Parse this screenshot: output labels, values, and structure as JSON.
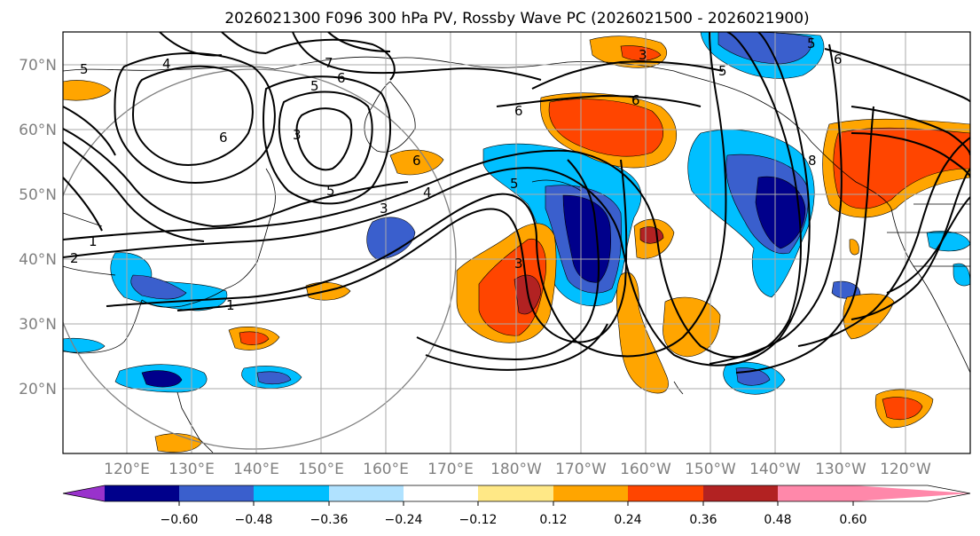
{
  "title": "2026021300 F096 300 hPa PV, Rossby Wave PC (2026021500 - 2026021900)",
  "lat_labels": [
    "70°N",
    "60°N",
    "50°N",
    "40°N",
    "30°N",
    "20°N"
  ],
  "lon_labels": [
    "120°E",
    "130°E",
    "140°E",
    "150°E",
    "160°E",
    "170°E",
    "180°W",
    "170°W",
    "160°W",
    "150°W",
    "140°W",
    "130°W",
    "120°W"
  ],
  "colorbar": {
    "ticks": [
      "−0.60",
      "−0.48",
      "−0.36",
      "−0.24",
      "−0.12",
      "0.12",
      "0.24",
      "0.36",
      "0.48",
      "0.60"
    ],
    "colors": [
      "#9932cc",
      "#00008b",
      "#3a5fcd",
      "#00bfff",
      "#b0e2ff",
      "#ffffff",
      "#ffe886",
      "#ffa500",
      "#ff4500",
      "#b22222",
      "#ff88aa"
    ]
  },
  "contour_labels": [
    "5",
    "4",
    "7",
    "5",
    "6",
    "6",
    "3",
    "5",
    "3",
    "6",
    "4",
    "6",
    "5",
    "5",
    "1",
    "2",
    "1",
    "3",
    "6",
    "5",
    "6",
    "8",
    "3"
  ]
}
